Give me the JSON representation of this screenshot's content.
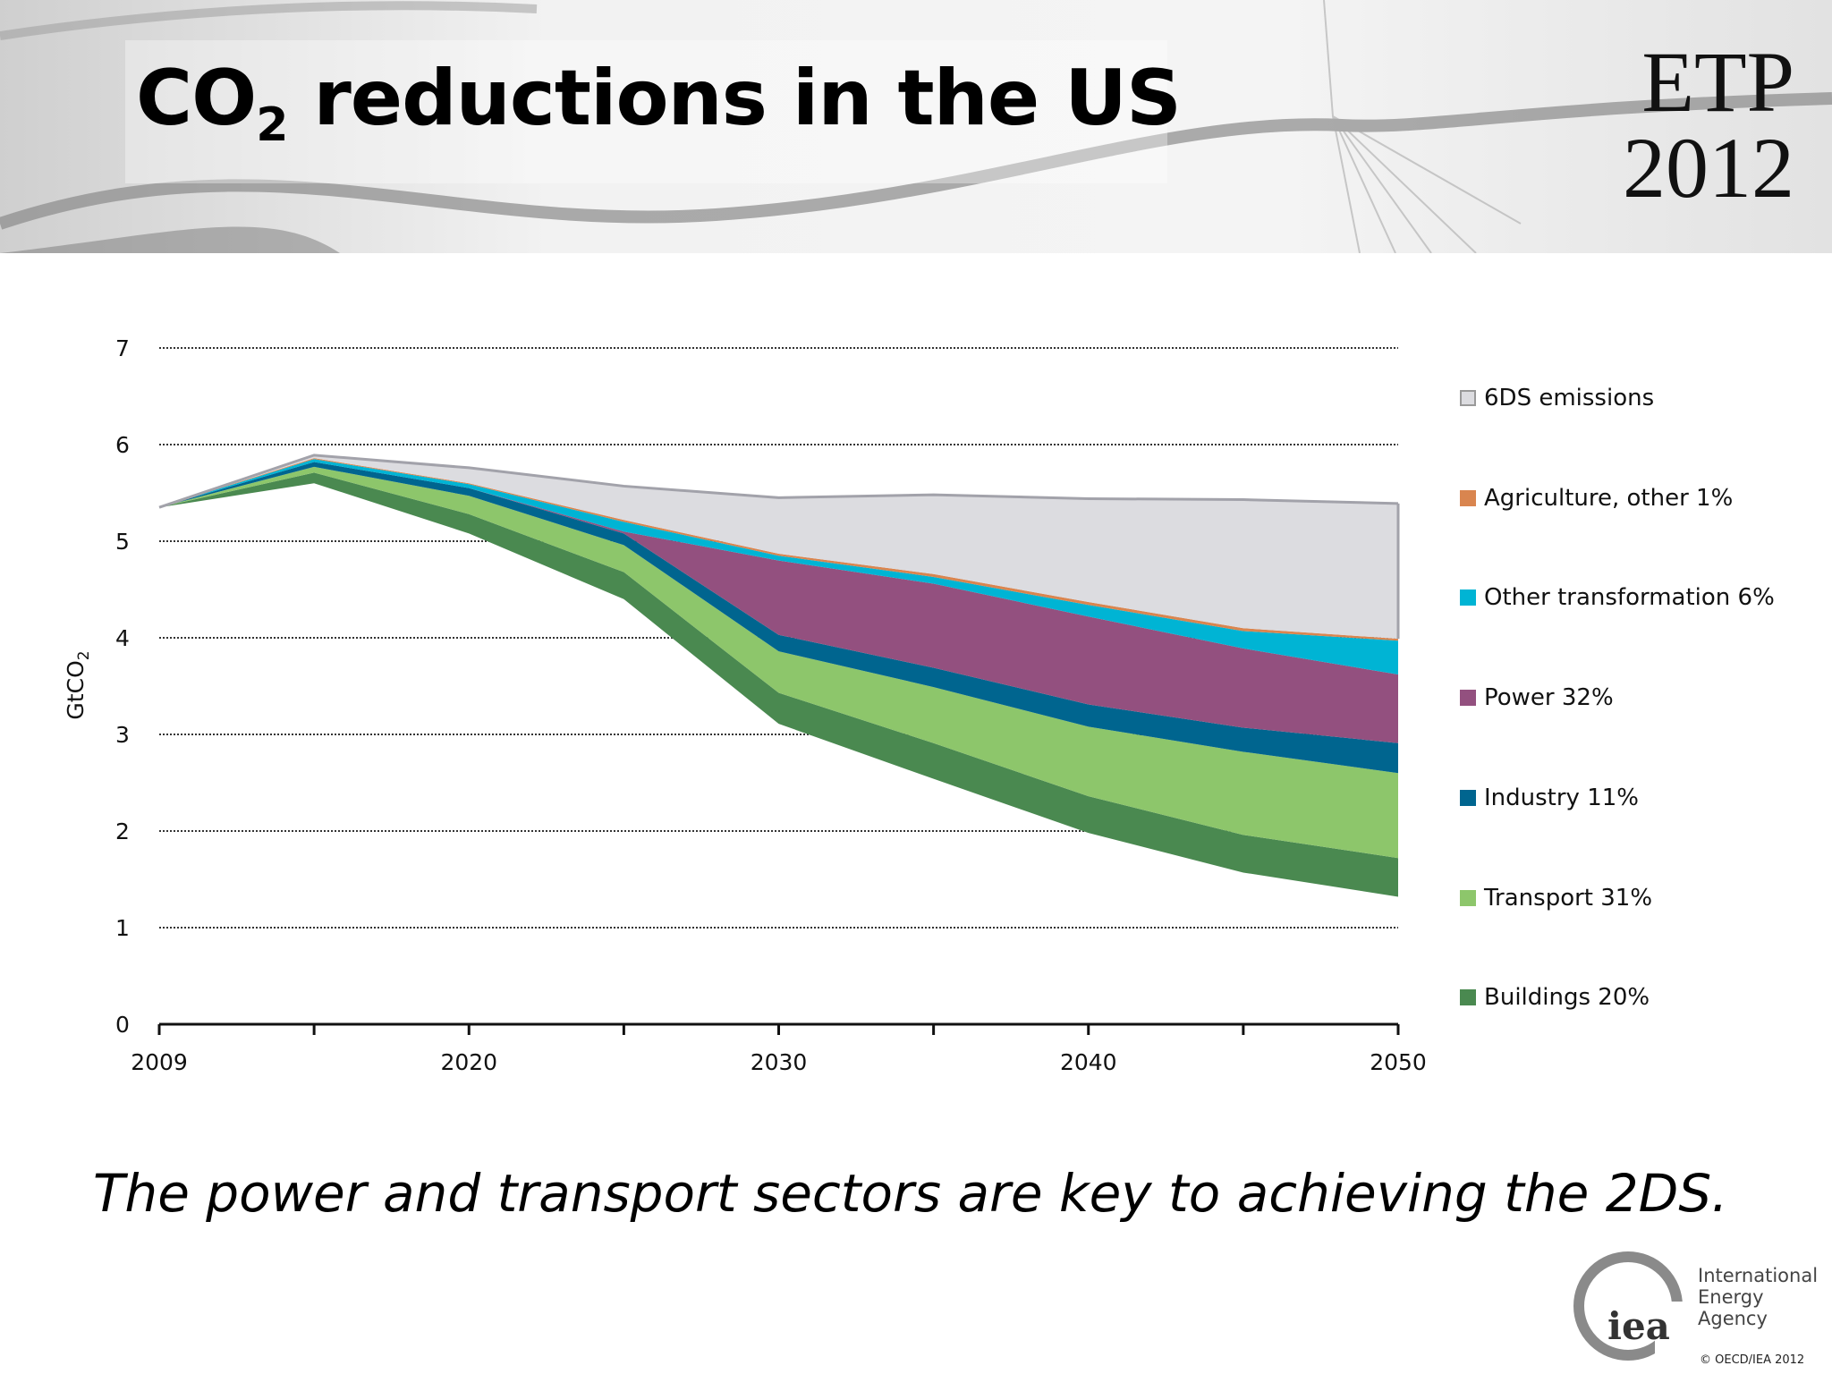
{
  "slide": {
    "title_main": "CO",
    "title_sub": "2",
    "title_rest": " reductions in the US",
    "badge_line1": "ETP",
    "badge_line2": "2012",
    "caption": "The power and transport sectors are key to achieving the 2DS.",
    "logo_text": "iea",
    "org_line1": "International",
    "org_line2": "Energy Agency",
    "copyright": "© OECD/IEA 2012"
  },
  "chart_data": {
    "type": "area",
    "stacked": true,
    "ylabel_main": "GtCO",
    "ylabel_sub": "2",
    "ylim": [
      0,
      7
    ],
    "yticks": [
      "0",
      "1",
      "2",
      "3",
      "4",
      "5",
      "6",
      "7"
    ],
    "x": [
      2009,
      2015,
      2020,
      2025,
      2030,
      2035,
      2040,
      2045,
      2050
    ],
    "xtick_labels": [
      "2009",
      "",
      "2020",
      "",
      "2030",
      "",
      "2040",
      "",
      "2050"
    ],
    "grid": "horizontal dotted",
    "legend_position": "right",
    "baseline": [
      5.35,
      5.6,
      5.08,
      4.4,
      3.11,
      2.54,
      1.98,
      1.57,
      1.32
    ],
    "series": [
      {
        "name": "Buildings 20%",
        "color": "#4a8950",
        "values": [
          0,
          0.11,
          0.2,
          0.28,
          0.32,
          0.37,
          0.38,
          0.39,
          0.4
        ]
      },
      {
        "name": "Transport 31%",
        "color": "#8dc66b",
        "values": [
          0,
          0.06,
          0.19,
          0.28,
          0.43,
          0.58,
          0.72,
          0.86,
          0.88
        ]
      },
      {
        "name": "Industry 11%",
        "color": "#00658f",
        "values": [
          0,
          0.05,
          0.08,
          0.12,
          0.17,
          0.2,
          0.23,
          0.25,
          0.31
        ]
      },
      {
        "name": "Power 32%",
        "color": "#93507f",
        "values": [
          0,
          0,
          0,
          0.02,
          0.77,
          0.87,
          0.91,
          0.82,
          0.71
        ]
      },
      {
        "name": "Other transformation  6%",
        "color": "#00b4d4",
        "values": [
          0,
          0.03,
          0.04,
          0.1,
          0.05,
          0.07,
          0.12,
          0.18,
          0.35
        ]
      },
      {
        "name": "Agriculture, other 1%",
        "color": "#d9854f",
        "values": [
          0,
          0.01,
          0.01,
          0.02,
          0.02,
          0.03,
          0.03,
          0.03,
          0.02
        ]
      },
      {
        "name": "6DS emissions",
        "color": "#dcdce0",
        "values": [
          0,
          0.03,
          0.16,
          0.35,
          0.58,
          0.82,
          1.07,
          1.33,
          1.4
        ]
      }
    ]
  }
}
